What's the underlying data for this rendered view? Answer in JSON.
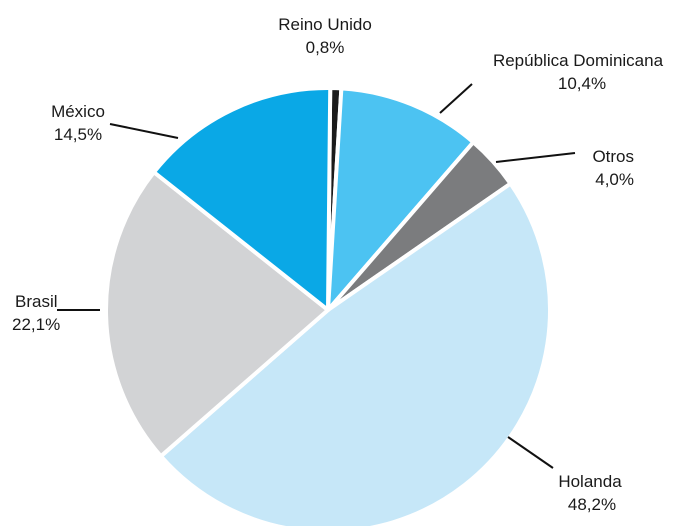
{
  "chart_data": {
    "type": "pie",
    "title": "",
    "slices": [
      {
        "label": "Reino Unido",
        "value": 0.8,
        "display": "0,8%",
        "color": "#1b1b1b"
      },
      {
        "label": "República Dominicana",
        "value": 10.4,
        "display": "10,4%",
        "color": "#4cc3f2"
      },
      {
        "label": "Otros",
        "value": 4.0,
        "display": "4,0%",
        "color": "#7b7c7e"
      },
      {
        "label": "Holanda",
        "value": 48.2,
        "display": "48,2%",
        "color": "#c6e7f8"
      },
      {
        "label": "Brasil",
        "value": 22.1,
        "display": "22,1%",
        "color": "#d2d3d5"
      },
      {
        "label": "México",
        "value": 14.5,
        "display": "14,5%",
        "color": "#0aa8e6"
      }
    ]
  }
}
